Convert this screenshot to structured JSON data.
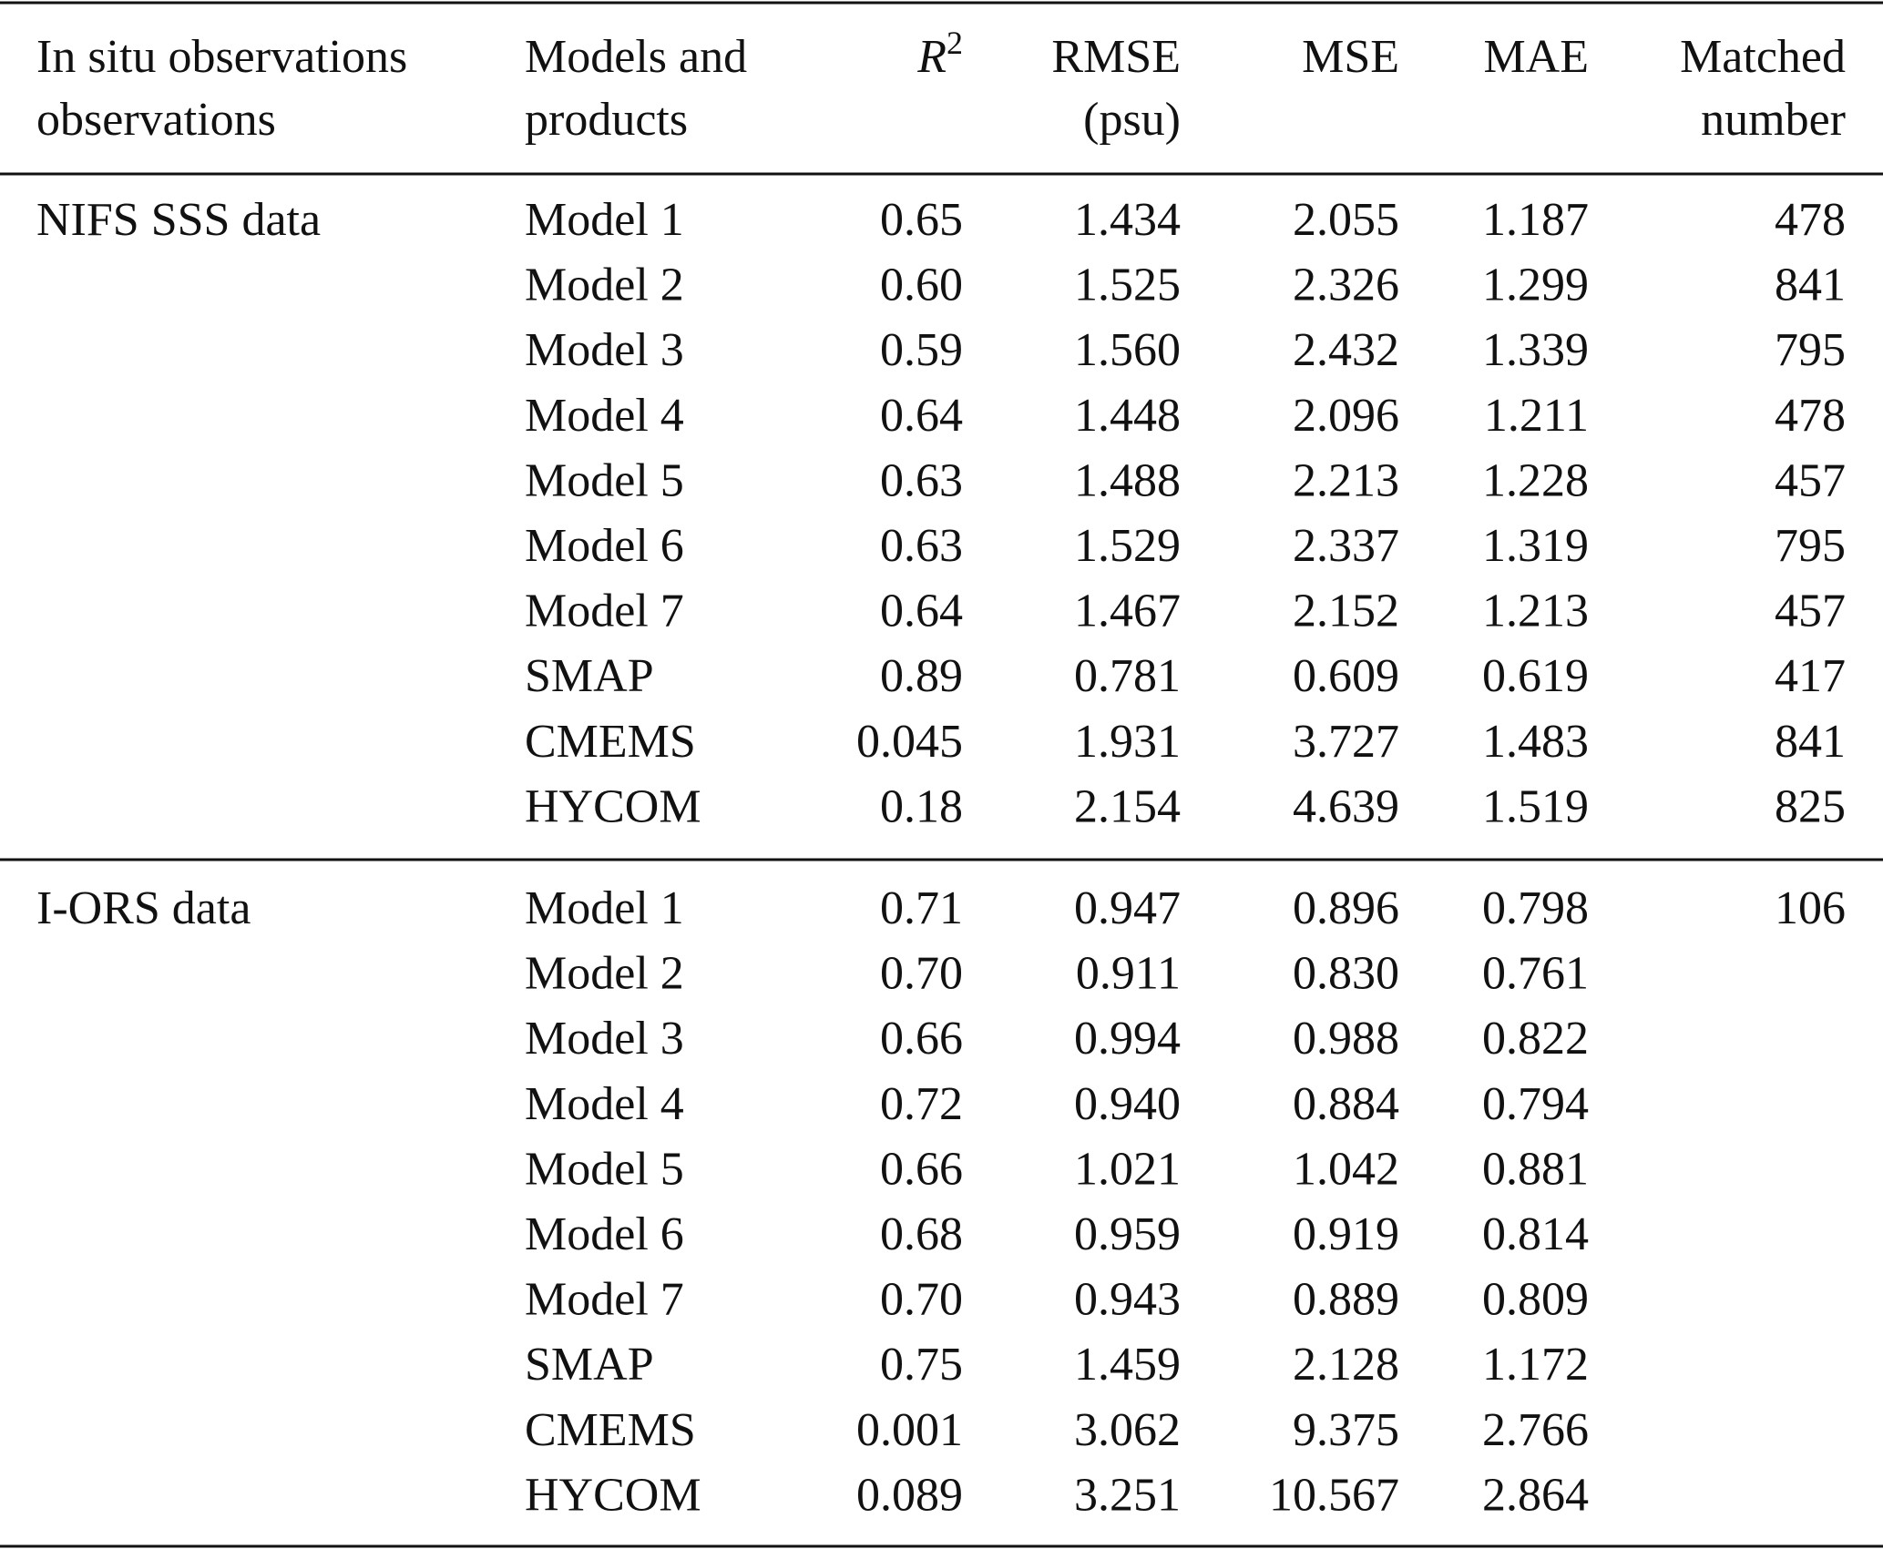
{
  "table": {
    "header": [
      [
        "In situ observations",
        "observations"
      ],
      [
        "Models and",
        "products"
      ],
      {
        "text": "R",
        "sup": "2"
      },
      [
        "RMSE",
        "(psu)"
      ],
      [
        "MSE"
      ],
      [
        "MAE"
      ],
      [
        "Matched",
        "number"
      ]
    ],
    "groups": [
      {
        "name": "NIFS SSS data",
        "rows": [
          [
            "Model 1",
            "0.65",
            "1.434",
            "2.055",
            "1.187",
            "478"
          ],
          [
            "Model 2",
            "0.60",
            "1.525",
            "2.326",
            "1.299",
            "841"
          ],
          [
            "Model 3",
            "0.59",
            "1.560",
            "2.432",
            "1.339",
            "795"
          ],
          [
            "Model 4",
            "0.64",
            "1.448",
            "2.096",
            "1.211",
            "478"
          ],
          [
            "Model 5",
            "0.63",
            "1.488",
            "2.213",
            "1.228",
            "457"
          ],
          [
            "Model 6",
            "0.63",
            "1.529",
            "2.337",
            "1.319",
            "795"
          ],
          [
            "Model 7",
            "0.64",
            "1.467",
            "2.152",
            "1.213",
            "457"
          ],
          [
            "SMAP",
            "0.89",
            "0.781",
            "0.609",
            "0.619",
            "417"
          ],
          [
            "CMEMS",
            "0.045",
            "1.931",
            "3.727",
            "1.483",
            "841"
          ],
          [
            "HYCOM",
            "0.18",
            "2.154",
            "4.639",
            "1.519",
            "825"
          ]
        ]
      },
      {
        "name": "I-ORS data",
        "rows": [
          [
            "Model 1",
            "0.71",
            "0.947",
            "0.896",
            "0.798",
            "106"
          ],
          [
            "Model 2",
            "0.70",
            "0.911",
            "0.830",
            "0.761"
          ],
          [
            "Model 3",
            "0.66",
            "0.994",
            "0.988",
            "0.822"
          ],
          [
            "Model 4",
            "0.72",
            "0.940",
            "0.884",
            "0.794"
          ],
          [
            "Model 5",
            "0.66",
            "1.021",
            "1.042",
            "0.881"
          ],
          [
            "Model 6",
            "0.68",
            "0.959",
            "0.919",
            "0.814"
          ],
          [
            "Model 7",
            "0.70",
            "0.943",
            "0.889",
            "0.809"
          ],
          [
            "SMAP",
            "0.75",
            "1.459",
            "2.128",
            "1.172"
          ],
          [
            "CMEMS",
            "0.001",
            "3.062",
            "9.375",
            "2.766"
          ],
          [
            "HYCOM",
            "0.089",
            "3.251",
            "10.567",
            "2.864"
          ]
        ]
      }
    ]
  }
}
